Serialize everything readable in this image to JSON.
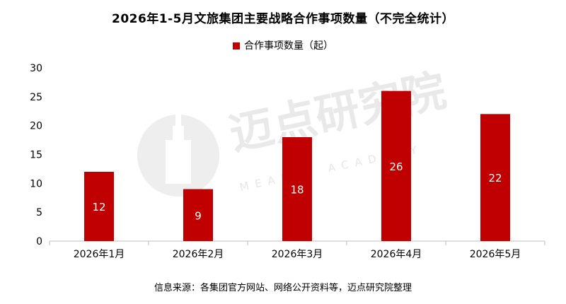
{
  "colors": {
    "bar": "#c00000",
    "axis": "#bfbfbf",
    "watermark": "#ececec"
  },
  "watermark": {
    "cn": "迈点研究院",
    "en": "MEADIN ACADEMY"
  },
  "source": "信息来源：各集团官方网站、网络公开资料等，迈点研究院整理",
  "chart_data": {
    "type": "bar",
    "title": "2026年1-5月文旅集团主要战略合作事项数量（不完全统计）",
    "categories": [
      "2026年1月",
      "2026年2月",
      "2026年3月",
      "2026年4月",
      "2026年5月"
    ],
    "series": [
      {
        "name": "合作事项数量（起）",
        "values": [
          12,
          9,
          18,
          26,
          22
        ]
      }
    ],
    "xlabel": "",
    "ylabel": "",
    "ylim": [
      0,
      30
    ],
    "yticks": [
      0,
      5,
      10,
      15,
      20,
      25,
      30
    ],
    "grid": false,
    "legend": "top-center",
    "data_labels": true
  }
}
